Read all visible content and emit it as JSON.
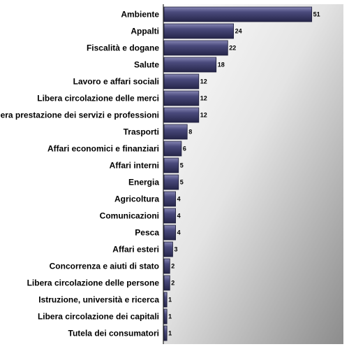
{
  "chart_data": {
    "type": "bar",
    "orientation": "horizontal",
    "categories": [
      "Ambiente",
      "Appalti",
      "Fiscalità e dogane",
      "Salute",
      "Lavoro e affari sociali",
      "Libera circolazione  delle merci",
      "Libera prestazione dei servizi e professioni",
      "Trasporti",
      "Affari economici e finanziari",
      "Affari  interni",
      "Energia",
      "Agricoltura",
      "Comunicazioni",
      "Pesca",
      "Affari esteri",
      "Concorrenza e aiuti di stato",
      "Libera circolazione  delle persone",
      "Istruzione, università e ricerca",
      "Libera circolazione dei capitali",
      "Tutela dei consumatori"
    ],
    "values": [
      51,
      24,
      22,
      18,
      12,
      12,
      12,
      8,
      6,
      5,
      5,
      4,
      4,
      4,
      3,
      2,
      2,
      1,
      1,
      1
    ],
    "xlim": [
      0,
      60
    ],
    "grid": false,
    "legend": "none",
    "colors": {
      "bar": "#3a3a66",
      "bar_highlight": "#6a6a9a",
      "plot_bg_light": "#ffffff",
      "plot_bg_dark": "#8a8a8a"
    }
  }
}
